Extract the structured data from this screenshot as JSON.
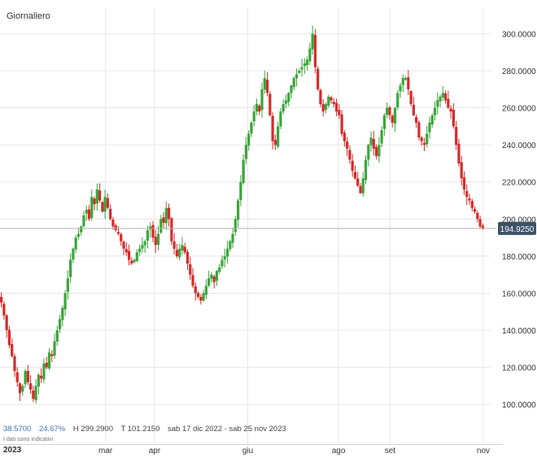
{
  "header": {
    "period_label": "Giornaliero"
  },
  "stats": {
    "change_abs": "38.5700",
    "change_pct": "24.67%",
    "high": "H 299.2900",
    "low": "T 101.2150",
    "range": "sab 17 dic 2022 - sab 25 nov 2023",
    "disclaimer": "I dati sono indicativi"
  },
  "colors": {
    "up": "#3aa53a",
    "down": "#d62a2a",
    "grid": "#e6e6e6",
    "price_tag_bg": "#3e5266",
    "price_line": "#b0b0b0"
  },
  "chart_data": {
    "type": "candlestick",
    "y_axis": {
      "min": 90,
      "max": 305,
      "ticks": [
        "100.0000",
        "120.0000",
        "140.0000",
        "160.0000",
        "180.0000",
        "200.0000",
        "220.0000",
        "240.0000",
        "260.0000",
        "280.0000",
        "300.0000"
      ],
      "position": "right"
    },
    "x_axis": {
      "year_label": "2023",
      "months": [
        "mar",
        "apr",
        "giu",
        "ago",
        "set",
        "nov"
      ]
    },
    "last_price": {
      "value": 194.925,
      "label": "194.9250"
    },
    "series": [
      {
        "values": [
          155,
          148,
          140,
          132,
          126,
          118,
          112,
          106,
          110,
          118,
          112,
          108,
          103,
          110,
          116,
          114,
          122,
          120,
          128,
          126,
          134,
          140,
          146,
          152,
          160,
          168,
          178,
          184,
          190,
          192,
          196,
          202,
          205,
          200,
          212,
          208,
          216,
          210,
          204,
          212,
          206,
          200,
          196,
          194,
          192,
          188,
          184,
          182,
          178,
          176,
          178,
          182,
          184,
          186,
          188,
          194,
          196,
          190,
          186,
          192,
          200,
          198,
          206,
          200,
          188,
          184,
          180,
          184,
          186,
          182,
          176,
          170,
          164,
          160,
          158,
          156,
          160,
          164,
          168,
          170,
          166,
          172,
          174,
          178,
          180,
          184,
          188,
          192,
          200,
          210,
          220,
          232,
          240,
          246,
          252,
          258,
          262,
          258,
          270,
          276,
          268,
          256,
          242,
          240,
          250,
          258,
          262,
          264,
          268,
          272,
          276,
          278,
          280,
          282,
          284,
          286,
          292,
          300,
          282,
          270,
          262,
          258,
          262,
          266,
          264,
          262,
          258,
          256,
          246,
          242,
          238,
          232,
          226,
          222,
          218,
          214,
          222,
          232,
          240,
          244,
          238,
          234,
          240,
          248,
          256,
          260,
          256,
          252,
          260,
          268,
          272,
          276,
          276,
          270,
          262,
          256,
          252,
          244,
          242,
          240,
          246,
          252,
          256,
          260,
          264,
          266,
          268,
          264,
          260,
          258,
          250,
          240,
          230,
          222,
          216,
          212,
          210,
          206,
          204,
          200,
          196,
          194.925
        ]
      }
    ]
  }
}
